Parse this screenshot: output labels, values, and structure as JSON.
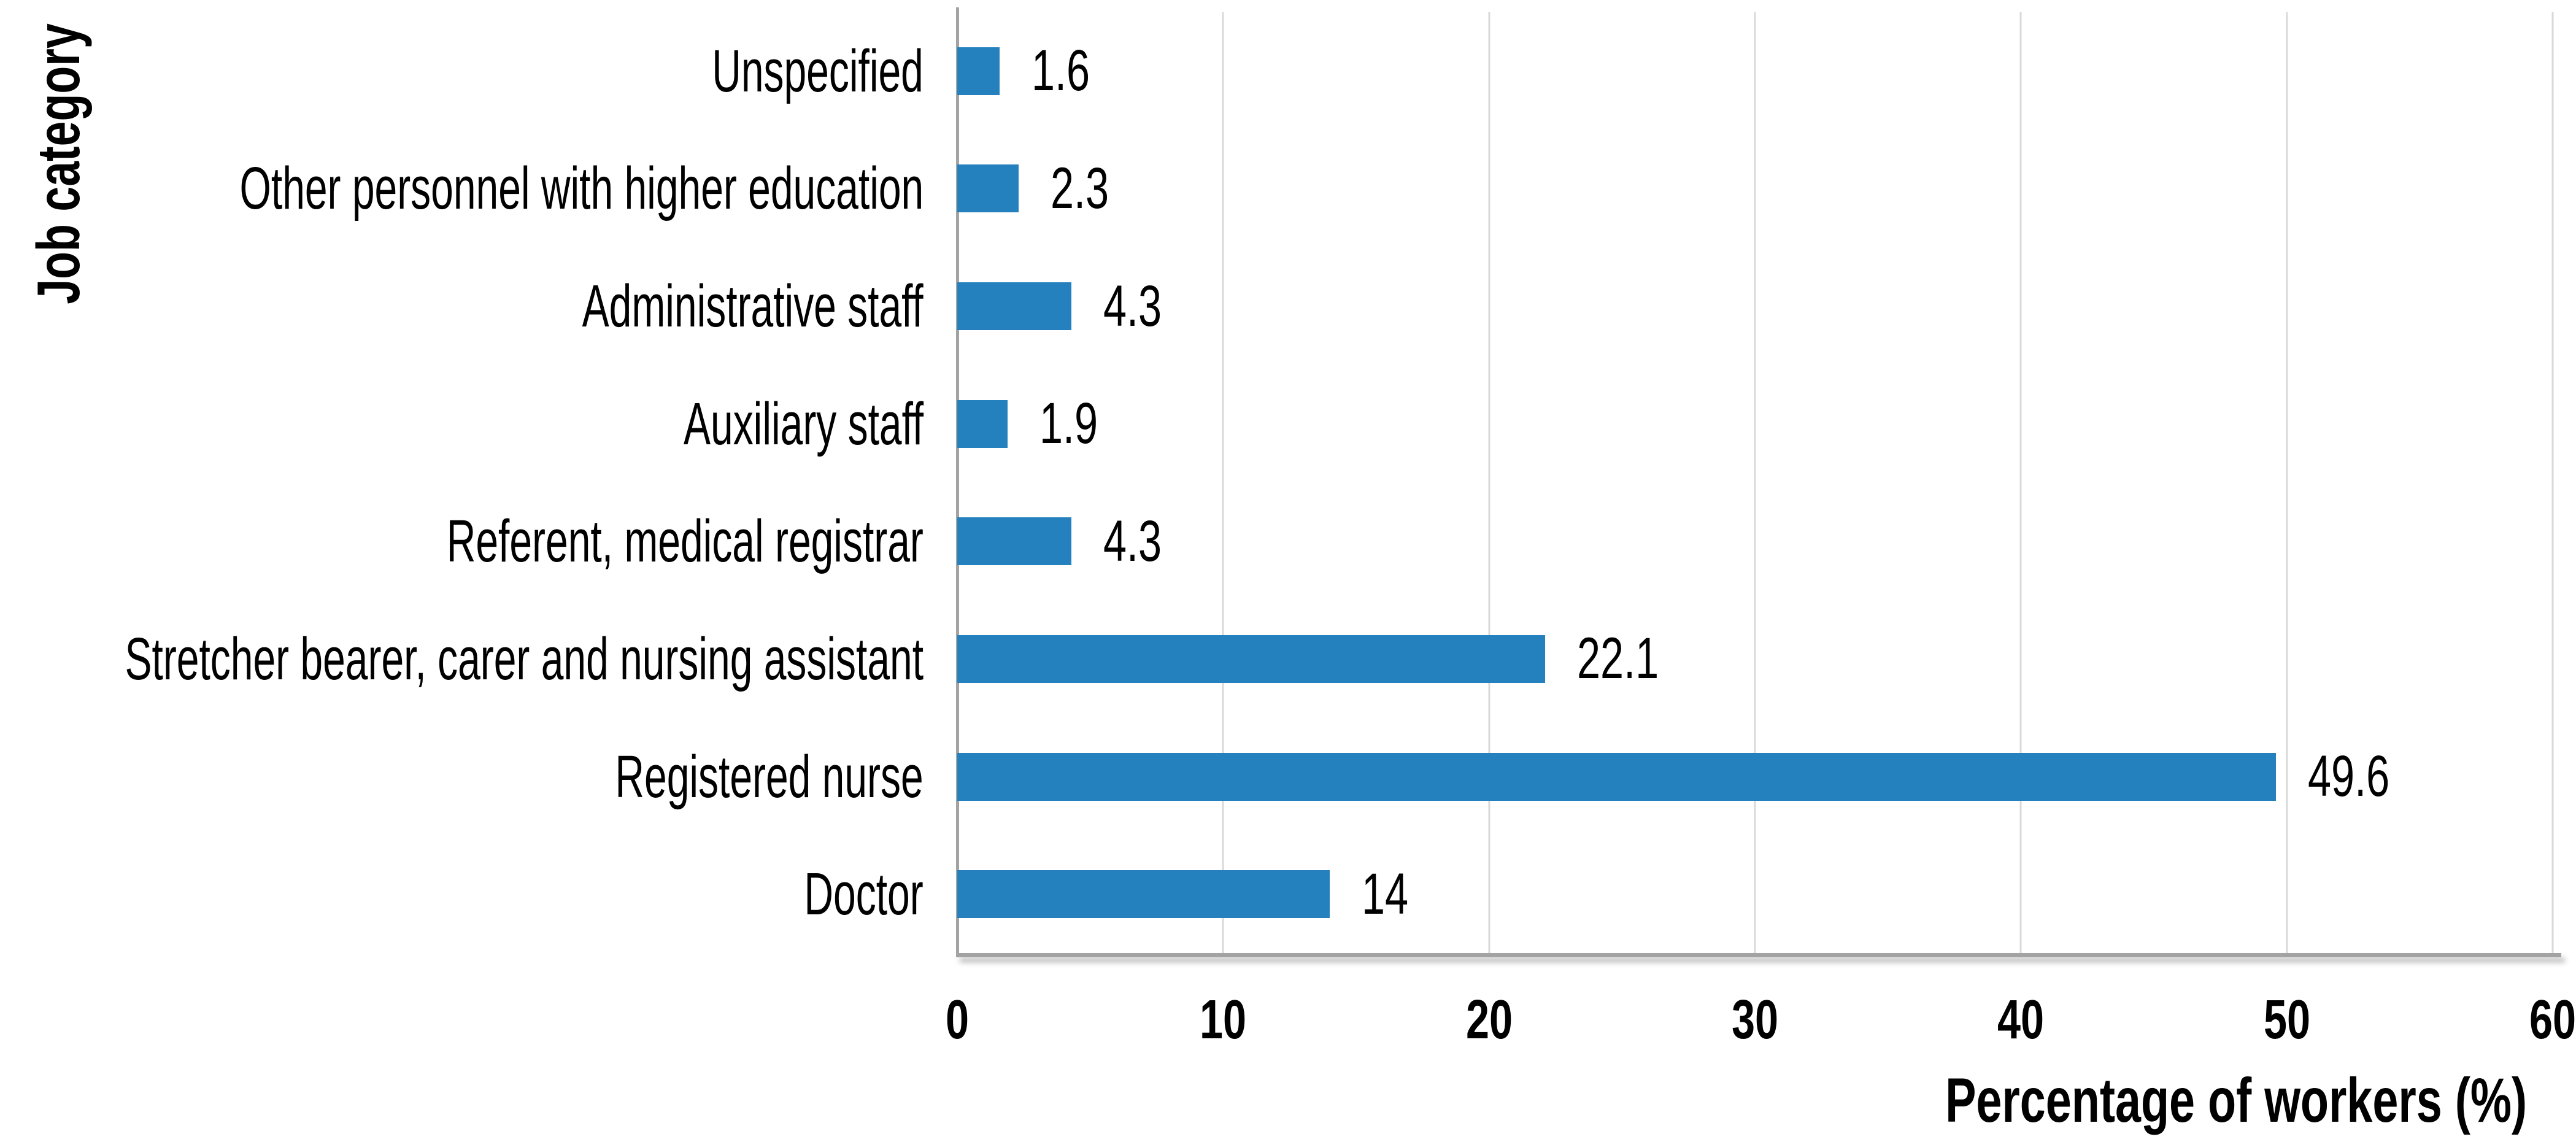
{
  "page": {
    "background": "#FFFFFF"
  },
  "chart": {
    "y_axis_title": "Job category",
    "x_axis_title": "Percentage of workers (%)"
  },
  "chart_data": {
    "type": "bar",
    "orientation": "horizontal",
    "title": "",
    "xlabel": "Percentage of workers (%)",
    "ylabel": "Job category",
    "categories": [
      "Unspecified",
      "Other personnel with higher education",
      "Administrative staff",
      "Auxiliary staff",
      "Referent, medical registrar",
      "Stretcher bearer, carer and nursing assistant",
      "Registered nurse",
      "Doctor"
    ],
    "values": [
      1.6,
      2.3,
      4.3,
      1.9,
      4.3,
      22.1,
      49.6,
      14
    ],
    "value_labels": [
      "1.6",
      "2.3",
      "4.3",
      "1.9",
      "4.3",
      "22.1",
      "49.6",
      "14"
    ],
    "xlim": [
      0,
      60
    ],
    "xticks": [
      0,
      10,
      20,
      30,
      40,
      50,
      60
    ],
    "grid": "vertical-gridlines",
    "legend": "none",
    "colors": {
      "bar": "#2581BE",
      "gridline": "#D9D9D9",
      "axis_line": "#A3A3A3",
      "text": "#000000"
    }
  }
}
